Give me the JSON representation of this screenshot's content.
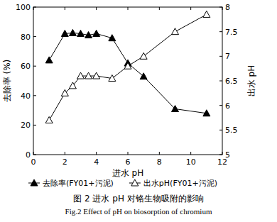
{
  "chart_data": {
    "type": "line",
    "title": "图 2  进水 pH 对铬生物吸附的影响",
    "subtitle": "Fig.2  Effect of pH on biosorption of chromium",
    "x_label": "进水 pH",
    "y_label": "去除率 (%)",
    "y2_label": "出水 pH",
    "x": [
      1,
      2,
      2.5,
      3,
      3.5,
      4,
      5,
      6,
      7,
      9,
      11
    ],
    "series": [
      {
        "name": "去除率(FY01+污泥)",
        "color": "#000000",
        "marker": "filled-triangle",
        "values": [
          64,
          82,
          82.5,
          82,
          81,
          82,
          79,
          62,
          53,
          31,
          28
        ]
      },
      {
        "name": "出水pH(FY01+污泥)",
        "color": "#000000",
        "marker": "open-triangle",
        "axis": "y2",
        "values": [
          5.7,
          6.25,
          6.4,
          6.6,
          6.6,
          6.6,
          6.55,
          6.8,
          7.0,
          7.5,
          7.85
        ]
      }
    ],
    "xlim": [
      0,
      12
    ],
    "xticks": [
      0,
      2,
      4,
      6,
      8,
      10,
      12
    ],
    "ylim": [
      0,
      100
    ],
    "yticks": [
      0,
      20,
      40,
      60,
      80,
      100
    ],
    "y2lim": [
      5,
      8
    ],
    "y2ticks": [
      5,
      5.5,
      6,
      6.5,
      7,
      7.5,
      8
    ],
    "legend": "bottom",
    "grid": false
  }
}
